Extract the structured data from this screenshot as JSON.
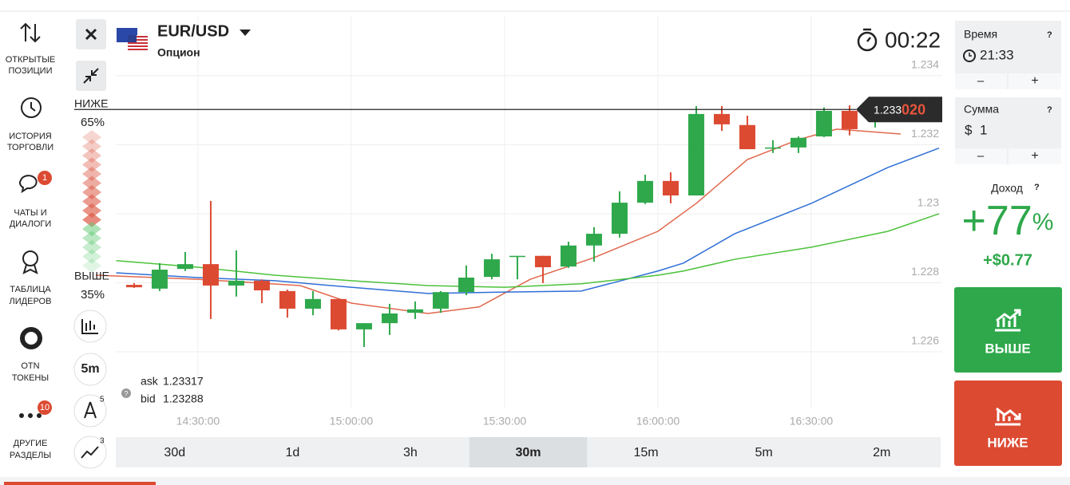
{
  "sidebar": [
    {
      "label": [
        "ОТКРЫТЫЕ",
        "ПОЗИЦИИ"
      ]
    },
    {
      "label": [
        "ИСТОРИЯ",
        "ТОРГОВЛИ"
      ]
    },
    {
      "label": [
        "ЧАТЫ И",
        "ДИАЛОГИ"
      ],
      "badge": "1"
    },
    {
      "label": [
        "ТАБЛИЦА",
        "ЛИДЕРОВ"
      ]
    },
    {
      "label": [
        "OTN",
        "ТОКЕНЫ"
      ]
    },
    {
      "label": [
        "ДРУГИЕ",
        "РАЗДЕЛЫ"
      ],
      "badge": "10"
    }
  ],
  "header": {
    "pair": "EUR/USD",
    "subtitle": "Опцион",
    "timer": "00:22"
  },
  "sentiment": {
    "down_label": "НИЖЕ",
    "down_pct": "65%",
    "up_label": "ВЫШЕ",
    "up_pct": "35%"
  },
  "tools": {
    "period": "5m",
    "drawing_badge": "5",
    "indicator_badge": "3"
  },
  "quote": {
    "ask_label": "ask",
    "ask": "1.23317",
    "bid_label": "bid",
    "bid": "1.23288"
  },
  "timeframes": {
    "items": [
      "30d",
      "1d",
      "3h",
      "30m",
      "15m",
      "5m",
      "2m"
    ],
    "active": 3
  },
  "panel": {
    "time_label": "Время",
    "time": "21:33",
    "amount_label": "Сумма",
    "currency": "$",
    "amount": "1",
    "minus": "–",
    "plus": "+",
    "income_label": "Доход",
    "income_pct": "+77",
    "pct_sign": "%",
    "income_value": "+$0.77",
    "up_button": "ВЫШЕ",
    "down_button": "НИЖЕ"
  },
  "chart_data": {
    "type": "candlestick",
    "x": [
      "14:15:00",
      "14:20:00",
      "14:25:00",
      "14:30:00",
      "14:35:00",
      "14:40:00",
      "14:45:00",
      "14:50:00",
      "14:55:00",
      "15:00:00",
      "15:05:00",
      "15:10:00",
      "15:15:00",
      "15:20:00",
      "15:25:00",
      "15:30:00",
      "15:35:00",
      "15:40:00",
      "15:45:00",
      "15:50:00",
      "15:55:00",
      "16:00:00",
      "16:05:00",
      "16:10:00",
      "16:15:00",
      "16:20:00",
      "16:25:00",
      "16:30:00",
      "16:35:00",
      "16:40:00"
    ],
    "open": [
      1.22794,
      1.22783,
      1.2284,
      1.22854,
      1.22792,
      1.22806,
      1.22776,
      1.22725,
      1.22753,
      1.22665,
      1.22683,
      1.22713,
      1.22725,
      1.22773,
      1.22817,
      1.22875,
      1.22878,
      1.22847,
      1.22908,
      1.22942,
      1.23032,
      1.23095,
      1.23053,
      1.23289,
      1.23257,
      1.2319,
      1.23192,
      1.23224,
      1.23298,
      1.23268
    ],
    "high": [
      1.22799,
      1.22857,
      1.22889,
      1.23037,
      1.22894,
      1.2281,
      1.2278,
      1.22776,
      1.22753,
      1.22683,
      1.22739,
      1.22746,
      1.22776,
      1.2285,
      1.22884,
      1.22878,
      1.22878,
      1.22919,
      1.22961,
      1.23065,
      1.23113,
      1.2312,
      1.23312,
      1.23312,
      1.23284,
      1.23213,
      1.23224,
      1.23308,
      1.23314,
      1.23335
    ],
    "low": [
      1.22785,
      1.22776,
      1.22834,
      1.22695,
      1.2276,
      1.22741,
      1.22699,
      1.22706,
      1.22662,
      1.22614,
      1.22649,
      1.22695,
      1.22713,
      1.22764,
      1.2281,
      1.2281,
      1.22799,
      1.22843,
      1.22861,
      1.22931,
      1.23028,
      1.2303,
      1.23053,
      1.2324,
      1.23187,
      1.23176,
      1.23176,
      1.23222,
      1.23227,
      1.2325
    ],
    "close": [
      1.22787,
      1.22838,
      1.22854,
      1.22792,
      1.22806,
      1.22778,
      1.22725,
      1.22753,
      1.22665,
      1.22683,
      1.22711,
      1.22723,
      1.22773,
      1.22815,
      1.22868,
      1.22878,
      1.22845,
      1.22908,
      1.22942,
      1.23032,
      1.23095,
      1.23053,
      1.23289,
      1.23259,
      1.23187,
      1.23192,
      1.2322,
      1.23298,
      1.23245,
      1.23277
    ],
    "up_color": "#2ea84b",
    "down_color": "#dc4a32",
    "series": [
      {
        "color": "#e0684c",
        "x": [
          "14:10:00",
          "14:30:00",
          "14:50:00",
          "15:00:00",
          "15:15:00",
          "15:25:00",
          "15:35:00",
          "15:47:30",
          "16:00:00",
          "16:07:30",
          "16:17:30",
          "16:27:30",
          "16:35:00",
          "16:47:30"
        ],
        "values": [
          1.22822,
          1.2281,
          1.22792,
          1.22741,
          1.22711,
          1.2273,
          1.2281,
          1.22873,
          1.22949,
          1.2303,
          1.23157,
          1.23215,
          1.23245,
          1.23231
        ]
      },
      {
        "color": "#2f6fd6",
        "x": [
          "14:14:00",
          "14:30:00",
          "14:45:00",
          "15:00:00",
          "15:15:00",
          "15:30:00",
          "15:45:00",
          "16:00:00",
          "16:05:00",
          "16:15:00",
          "16:30:00",
          "16:45:00",
          "16:55:00"
        ],
        "values": [
          1.22829,
          1.22815,
          1.22806,
          1.22787,
          1.22769,
          1.22773,
          1.22776,
          1.22834,
          1.22857,
          1.22942,
          1.2303,
          1.23134,
          1.2319
        ]
      },
      {
        "color": "#4cc23a",
        "x": [
          "14:14:00",
          "14:30:00",
          "14:45:00",
          "15:00:00",
          "15:15:00",
          "15:30:00",
          "15:45:00",
          "16:00:00",
          "16:05:00",
          "16:15:00",
          "16:30:00",
          "16:45:00",
          "16:55:00"
        ],
        "values": [
          1.22864,
          1.22845,
          1.22822,
          1.22806,
          1.22792,
          1.22787,
          1.22797,
          1.22822,
          1.22834,
          1.22868,
          1.22903,
          1.22949,
          1.23
        ]
      }
    ],
    "xlim": [
      "14:13:55",
      "16:55:38"
    ],
    "xticks": [
      "14:30:00",
      "15:00:00",
      "15:30:00",
      "16:00:00",
      "16:30:00"
    ],
    "ylim": [
      1.22436,
      1.23573
    ],
    "yticks": [
      1.226,
      1.228,
      1.23,
      1.232,
      1.234
    ],
    "grid": true,
    "current_price": {
      "value": 1.23302,
      "label_main": "1.233",
      "label_tail": "020"
    }
  }
}
